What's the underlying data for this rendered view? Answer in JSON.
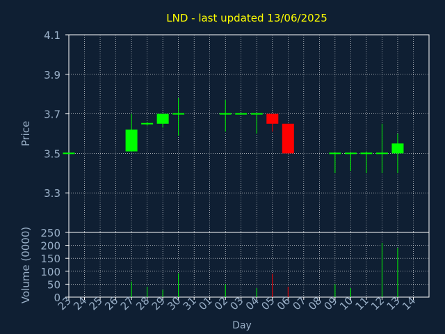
{
  "chart_data": [
    {
      "type": "candlestick",
      "title": "LND - last updated 13/06/2025",
      "ylabel": "Price",
      "ylim": [
        3.1,
        4.1
      ],
      "yticks": [
        "4.1",
        "3.9",
        "3.7",
        "3.5",
        "3.3"
      ],
      "ytick_values": [
        4.1,
        3.9,
        3.7,
        3.5,
        3.3
      ],
      "grid": true,
      "colors": {
        "background": "#0f1f33",
        "axes": "#ffffff",
        "grid": "#ffffff",
        "title": "#ffff00",
        "text": "#9ab0c8",
        "up": "#00ff00",
        "down": "#ff0000"
      },
      "x": [
        "23",
        "24",
        "25",
        "26",
        "27",
        "28",
        "29",
        "30",
        "31",
        "01",
        "02",
        "03",
        "04",
        "05",
        "06",
        "07",
        "08",
        "09",
        "10",
        "11",
        "12",
        "13",
        "14"
      ],
      "candles": [
        {
          "x": "23",
          "open": 3.5,
          "high": 3.5,
          "low": 3.5,
          "close": 3.5
        },
        {
          "x": "27",
          "open": 3.51,
          "high": 3.7,
          "low": 3.51,
          "close": 3.62
        },
        {
          "x": "28",
          "open": 3.65,
          "high": 3.66,
          "low": 3.64,
          "close": 3.65
        },
        {
          "x": "29",
          "open": 3.65,
          "high": 3.7,
          "low": 3.63,
          "close": 3.7
        },
        {
          "x": "30",
          "open": 3.7,
          "high": 3.78,
          "low": 3.59,
          "close": 3.7
        },
        {
          "x": "02",
          "open": 3.7,
          "high": 3.77,
          "low": 3.61,
          "close": 3.7
        },
        {
          "x": "03",
          "open": 3.7,
          "high": 3.7,
          "low": 3.7,
          "close": 3.7
        },
        {
          "x": "04",
          "open": 3.7,
          "high": 3.7,
          "low": 3.6,
          "close": 3.7
        },
        {
          "x": "05",
          "open": 3.7,
          "high": 3.7,
          "low": 3.61,
          "close": 3.65
        },
        {
          "x": "06",
          "open": 3.65,
          "high": 3.65,
          "low": 3.5,
          "close": 3.5
        },
        {
          "x": "09",
          "open": 3.5,
          "high": 3.5,
          "low": 3.4,
          "close": 3.5
        },
        {
          "x": "10",
          "open": 3.5,
          "high": 3.5,
          "low": 3.41,
          "close": 3.5
        },
        {
          "x": "11",
          "open": 3.5,
          "high": 3.51,
          "low": 3.4,
          "close": 3.5
        },
        {
          "x": "12",
          "open": 3.5,
          "high": 3.65,
          "low": 3.4,
          "close": 3.5
        },
        {
          "x": "13",
          "open": 3.5,
          "high": 3.6,
          "low": 3.4,
          "close": 3.55
        }
      ]
    },
    {
      "type": "bar",
      "ylabel": "Volume (0000)",
      "xlabel": "Day",
      "ylim": [
        0,
        250
      ],
      "yticks": [
        "250",
        "200",
        "150",
        "100",
        "50",
        "0"
      ],
      "ytick_values": [
        250,
        200,
        150,
        100,
        50,
        0
      ],
      "grid": true,
      "x": [
        "23",
        "24",
        "25",
        "26",
        "27",
        "28",
        "29",
        "30",
        "31",
        "01",
        "02",
        "03",
        "04",
        "05",
        "06",
        "07",
        "08",
        "09",
        "10",
        "11",
        "12",
        "13",
        "14"
      ],
      "bars": [
        {
          "x": "27",
          "value": 60,
          "color": "#00ff00"
        },
        {
          "x": "28",
          "value": 40,
          "color": "#00ff00"
        },
        {
          "x": "29",
          "value": 28,
          "color": "#00ff00"
        },
        {
          "x": "30",
          "value": 92,
          "color": "#00ff00"
        },
        {
          "x": "02",
          "value": 50,
          "color": "#00ff00"
        },
        {
          "x": "04",
          "value": 35,
          "color": "#00ff00"
        },
        {
          "x": "05",
          "value": 90,
          "color": "#ff0000"
        },
        {
          "x": "06",
          "value": 40,
          "color": "#ff0000"
        },
        {
          "x": "09",
          "value": 50,
          "color": "#00ff00"
        },
        {
          "x": "10",
          "value": 35,
          "color": "#00ff00"
        },
        {
          "x": "12",
          "value": 210,
          "color": "#00ff00"
        },
        {
          "x": "13",
          "value": 190,
          "color": "#00ff00"
        }
      ]
    }
  ]
}
